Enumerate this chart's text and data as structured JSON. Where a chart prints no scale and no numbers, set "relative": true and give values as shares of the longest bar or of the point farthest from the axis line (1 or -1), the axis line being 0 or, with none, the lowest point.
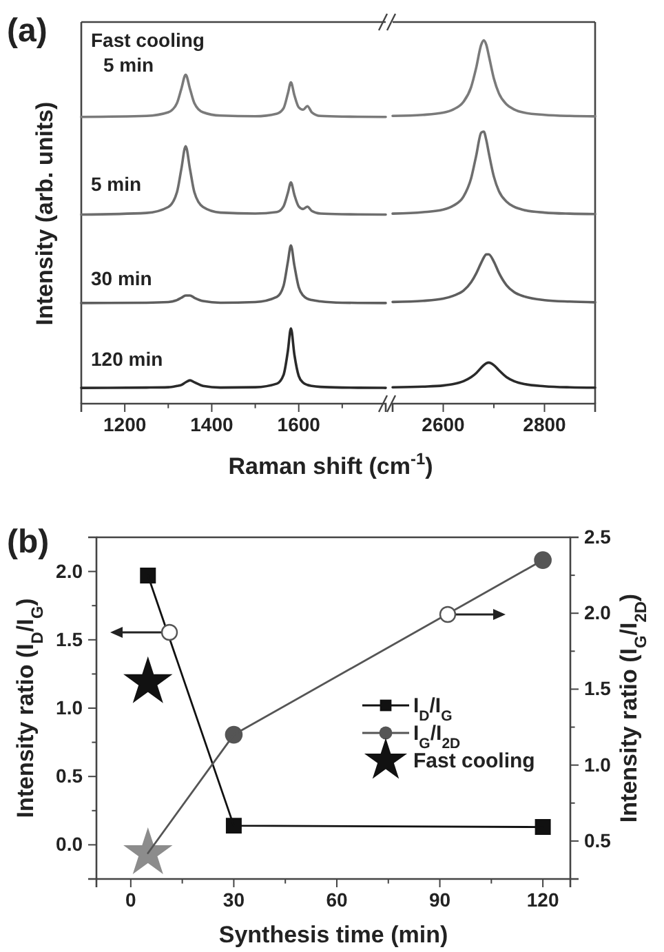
{
  "chart_data": [
    {
      "type": "line",
      "title": "(a)",
      "xlabel": "Raman shift (cm$^{-1}$)",
      "ylabel": "Intensity (arb. units)",
      "relative": true,
      "x": [
        1100,
        1250,
        1300,
        1320,
        1330,
        1340,
        1350,
        1360,
        1380,
        1420,
        1500,
        1550,
        1565,
        1575,
        1582,
        1590,
        1600,
        1610,
        1620,
        1630,
        1650,
        1700,
        1800
      ],
      "xlim": [
        1100,
        1800
      ],
      "xticks": [
        1200,
        {
          "value": 1300,
          "label": null
        },
        1400,
        {
          "value": 1500,
          "label": null
        },
        1600,
        {
          "value": 1700,
          "label": null
        }
      ],
      "series": [
        {
          "name": "Fast cooling 5 min",
          "color": "#7a7a7a",
          "values": [
            0.872,
            0.875,
            0.886,
            0.914,
            0.957,
            1.0,
            0.957,
            0.914,
            0.886,
            0.876,
            0.874,
            0.882,
            0.898,
            0.943,
            0.977,
            0.938,
            0.901,
            0.894,
            0.905,
            0.886,
            0.875,
            0.873,
            0.872
          ]
        },
        {
          "name": "5 min",
          "color": "#6e6e6e",
          "values": [
            0.575,
            0.58,
            0.598,
            0.643,
            0.713,
            0.783,
            0.713,
            0.643,
            0.598,
            0.581,
            0.578,
            0.583,
            0.6,
            0.641,
            0.673,
            0.635,
            0.6,
            0.592,
            0.599,
            0.586,
            0.578,
            0.576,
            0.575
          ]
        },
        {
          "name": "30 min",
          "color": "#5e5e5e",
          "values": [
            0.306,
            0.307,
            0.309,
            0.315,
            0.322,
            0.329,
            0.329,
            0.322,
            0.312,
            0.307,
            0.309,
            0.325,
            0.358,
            0.431,
            0.481,
            0.42,
            0.354,
            0.329,
            0.319,
            0.315,
            0.311,
            0.307,
            0.306
          ]
        },
        {
          "name": "120 min",
          "color": "#2a2a2a",
          "values": [
            0.048,
            0.049,
            0.05,
            0.054,
            0.057,
            0.065,
            0.071,
            0.065,
            0.054,
            0.049,
            0.05,
            0.061,
            0.087,
            0.16,
            0.229,
            0.149,
            0.084,
            0.064,
            0.057,
            0.054,
            0.051,
            0.049,
            0.048
          ]
        }
      ]
    },
    {
      "type": "line",
      "relative": true,
      "x": [
        2500,
        2560,
        2600,
        2620,
        2640,
        2655,
        2665,
        2675,
        2680,
        2685,
        2690,
        2700,
        2710,
        2725,
        2740,
        2760,
        2800,
        2850,
        2900
      ],
      "xlim": [
        2500,
        2900
      ],
      "xticks": [
        2600,
        {
          "value": 2700,
          "label": null
        },
        2800
      ],
      "series": [
        {
          "color": "#7a7a7a",
          "values": [
            0.792,
            0.795,
            0.801,
            0.81,
            0.831,
            0.871,
            0.924,
            0.988,
            1.0,
            0.988,
            0.958,
            0.895,
            0.854,
            0.824,
            0.81,
            0.801,
            0.795,
            0.792,
            0.791
          ]
        },
        {
          "color": "#6e6e6e",
          "values": [
            0.523,
            0.527,
            0.534,
            0.545,
            0.57,
            0.62,
            0.682,
            0.746,
            0.749,
            0.726,
            0.69,
            0.625,
            0.585,
            0.556,
            0.542,
            0.533,
            0.526,
            0.523,
            0.522
          ]
        },
        {
          "color": "#5e5e5e",
          "values": [
            0.28,
            0.283,
            0.289,
            0.297,
            0.311,
            0.334,
            0.358,
            0.388,
            0.402,
            0.411,
            0.411,
            0.391,
            0.36,
            0.326,
            0.307,
            0.295,
            0.285,
            0.281,
            0.279
          ]
        },
        {
          "color": "#2a2a2a",
          "values": [
            0.045,
            0.047,
            0.05,
            0.054,
            0.062,
            0.073,
            0.084,
            0.099,
            0.106,
            0.111,
            0.113,
            0.106,
            0.092,
            0.073,
            0.062,
            0.054,
            0.048,
            0.045,
            0.044
          ]
        }
      ]
    },
    {
      "type": "line",
      "title": "(b)",
      "xlabel": "Synthesis time (min)",
      "ylabel": "Intensity ratio (I$_{D}$/I$_{G}$)",
      "y2label": "Intensity ratio (I$_{G}$/I$_{2D}$)",
      "xlim": [
        -10,
        128
      ],
      "xticks": [
        0,
        {
          "value": 15,
          "label": null
        },
        30,
        {
          "value": 45,
          "label": null
        },
        60,
        {
          "value": 75,
          "label": null
        },
        90,
        {
          "value": 105,
          "label": null
        },
        120
      ],
      "ylim": [
        -0.25,
        2.25
      ],
      "yticks": [
        {
          "value": 0,
          "label": "0.0"
        },
        {
          "value": 0.25,
          "label": null
        },
        {
          "value": 0.5,
          "label": "0.5"
        },
        {
          "value": 0.75,
          "label": null
        },
        {
          "value": 1,
          "label": "1.0"
        },
        {
          "value": 1.25,
          "label": null
        },
        {
          "value": 1.5,
          "label": "1.5"
        },
        {
          "value": 1.75,
          "label": null
        },
        {
          "value": 2,
          "label": "2.0"
        }
      ],
      "y2lim": [
        0.25,
        2.5
      ],
      "y2ticks": [
        {
          "value": 0.5,
          "label": "0.5"
        },
        {
          "value": 0.75,
          "label": null
        },
        {
          "value": 1,
          "label": "1.0"
        },
        {
          "value": 1.25,
          "label": null
        },
        {
          "value": 1.5,
          "label": "1.5"
        },
        {
          "value": 1.75,
          "label": null
        },
        {
          "value": 2,
          "label": "2.0"
        },
        {
          "value": 2.25,
          "label": null
        },
        {
          "value": 2.5,
          "label": "2.5"
        }
      ],
      "legend": "right",
      "series": [
        {
          "name": "I$_{D}$/I$_{G}$",
          "color": "#111111",
          "marker": "square",
          "x": [
            5,
            30,
            120
          ],
          "values": [
            1.97,
            0.14,
            0.13
          ]
        },
        {
          "type": "scatter",
          "color": "#8c8c8c",
          "marker": "star",
          "axis": "y2",
          "x": [
            5
          ],
          "values": [
            0.42
          ]
        },
        {
          "name": "I$_{G}$/I$_{2D}$",
          "color": "#555555",
          "marker": [
            "none",
            "circle",
            "circle"
          ],
          "axis": "y2",
          "x": [
            5,
            30,
            120
          ],
          "values": [
            0.42,
            1.2,
            2.35
          ]
        },
        {
          "name": "Fast cooling",
          "type": "scatter",
          "color": "#111111",
          "marker": "star",
          "x": [
            5
          ],
          "values": [
            1.19
          ]
        }
      ]
    }
  ]
}
